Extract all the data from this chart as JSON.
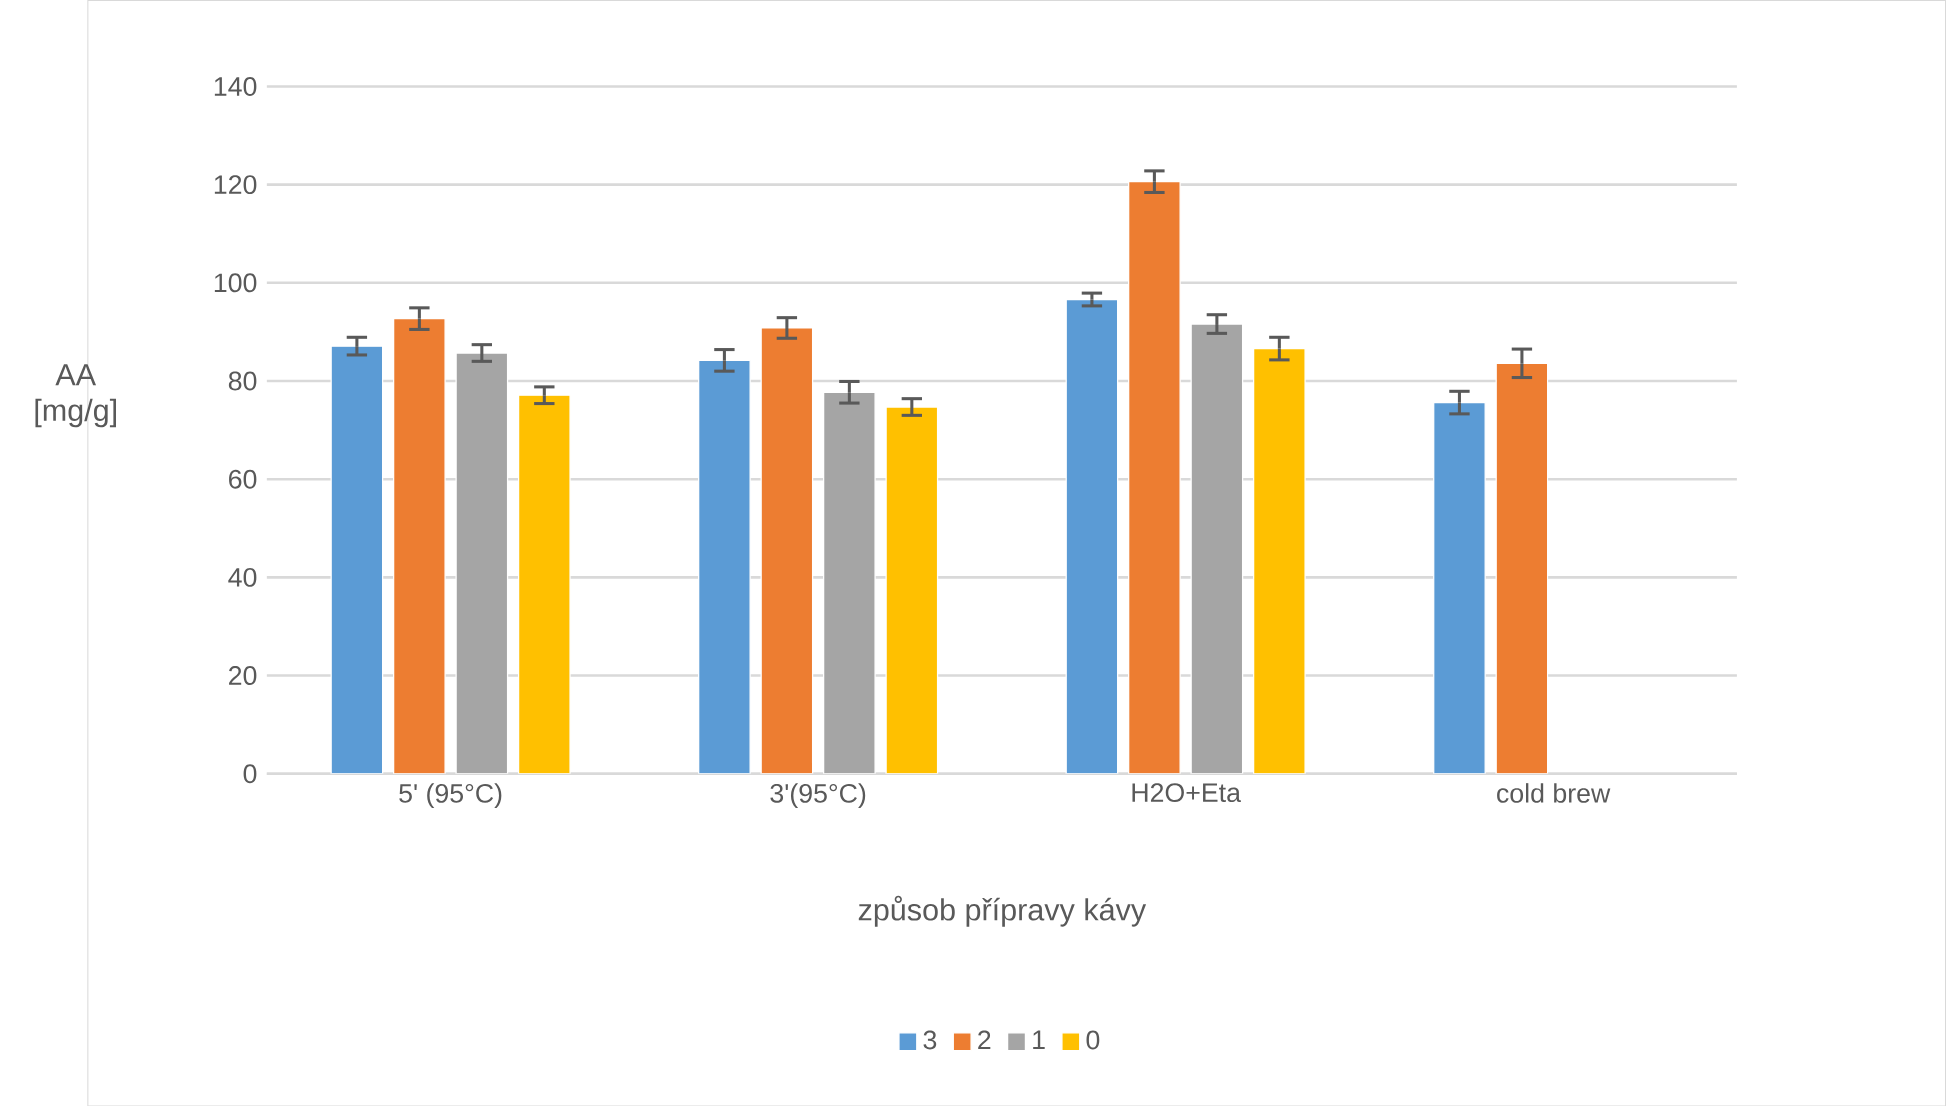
{
  "chart_data": {
    "type": "bar",
    "categories": [
      "5' (95°C)",
      "3'(95°C)",
      "H2O+Eta",
      "cold brew"
    ],
    "xlabel": "způsob přípravy kávy",
    "ylabel": "AA [mg/g]",
    "ylim": [
      0,
      140
    ],
    "yticks": [
      0,
      20,
      40,
      60,
      80,
      100,
      120,
      140
    ],
    "grid": "y",
    "legend": "bottom",
    "series": [
      {
        "name": "3",
        "color": "#5b9bd5",
        "values": [
          87.1,
          84.2,
          96.6,
          75.6
        ],
        "errors": [
          1.8,
          2.2,
          1.3,
          2.3
        ]
      },
      {
        "name": "2",
        "color": "#ed7d31",
        "values": [
          92.7,
          90.8,
          120.6,
          83.6
        ],
        "errors": [
          2.2,
          2.1,
          2.2,
          2.9
        ]
      },
      {
        "name": "1",
        "color": "#a5a5a5",
        "values": [
          85.7,
          77.7,
          91.6,
          null
        ],
        "errors": [
          1.7,
          2.2,
          1.9,
          null
        ]
      },
      {
        "name": "0",
        "color": "#ffc000",
        "values": [
          77.1,
          74.7,
          86.6,
          null
        ],
        "errors": [
          1.7,
          1.7,
          2.3,
          null
        ]
      }
    ]
  }
}
